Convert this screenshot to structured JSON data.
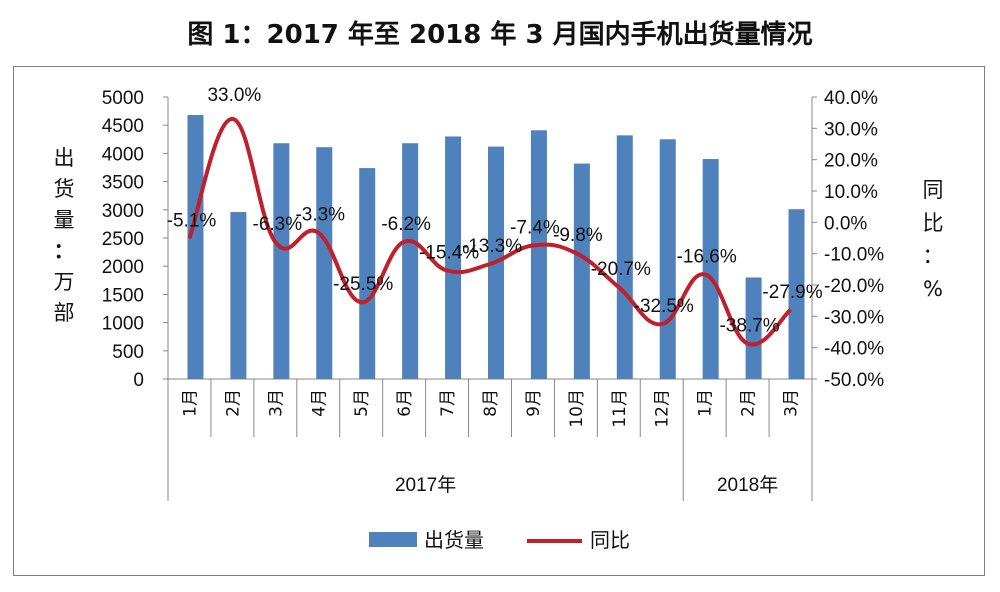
{
  "title": "图 1：2017 年至 2018 年 3 月国内手机出货量情况",
  "chart_data": {
    "type": "bar+line",
    "categories": [
      "1月",
      "2月",
      "3月",
      "4月",
      "5月",
      "6月",
      "7月",
      "8月",
      "9月",
      "10月",
      "11月",
      "12月",
      "1月",
      "2月",
      "3月"
    ],
    "groups": [
      {
        "label": "2017年",
        "count": 12
      },
      {
        "label": "2018年",
        "count": 3
      }
    ],
    "series": [
      {
        "name": "出货量",
        "type": "bar",
        "axis": "left",
        "color": "#4f81bd",
        "values": [
          4680,
          2960,
          4180,
          4110,
          3740,
          4180,
          4300,
          4120,
          4410,
          3820,
          4320,
          4250,
          3900,
          1800,
          3010
        ]
      },
      {
        "name": "同比",
        "type": "line",
        "axis": "right",
        "color": "#c0202a",
        "values": [
          -5.1,
          33.0,
          -6.3,
          -3.3,
          -25.5,
          -6.2,
          -15.4,
          -13.3,
          -7.4,
          -9.8,
          -20.7,
          -32.5,
          -16.6,
          -38.7,
          -27.9
        ],
        "labels": [
          "-5.1%",
          "33.0%",
          "-6.3%",
          "-3.3%",
          "-25.5%",
          "-6.2%",
          "-15.4%",
          "-13.3%",
          "-7.4%",
          "-9.8%",
          "-20.7%",
          "-32.5%",
          "-16.6%",
          "-38.7%",
          "-27.9%"
        ]
      }
    ],
    "y_left": {
      "label": "出货量：万部",
      "min": 0,
      "max": 5000,
      "step": 500,
      "ticks": [
        "0",
        "500",
        "1000",
        "1500",
        "2000",
        "2500",
        "3000",
        "3500",
        "4000",
        "4500",
        "5000"
      ]
    },
    "y_right": {
      "label": "同比：%",
      "min": -50,
      "max": 40,
      "step": 10,
      "ticks": [
        "-50.0%",
        "-40.0%",
        "-30.0%",
        "-20.0%",
        "-10.0%",
        "0.0%",
        "10.0%",
        "20.0%",
        "30.0%",
        "40.0%"
      ]
    },
    "legend": {
      "position": "bottom",
      "items": [
        "出货量",
        "同比"
      ]
    },
    "grid": false
  }
}
